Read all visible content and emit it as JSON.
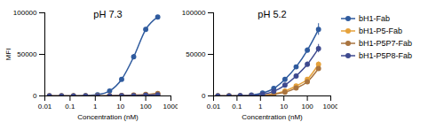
{
  "chart_data": [
    {
      "type": "line",
      "title": "pH 7.3",
      "x_label": "Concentration (nM)",
      "y_label": "MFI",
      "log": "x",
      "xlim": [
        0.01,
        1000
      ],
      "xticks": [
        0.01,
        0.1,
        1,
        10,
        100,
        1000
      ],
      "ylim": [
        0,
        100000
      ],
      "yticks": [
        0,
        50000,
        100000
      ],
      "marker": "circle",
      "x": [
        0.0152,
        0.0457,
        0.137,
        0.412,
        1.23,
        3.7,
        11.1,
        33.3,
        100,
        300
      ],
      "series": [
        {
          "name": "bH1-Fab",
          "color": "#2f5b9e",
          "values": [
            0,
            0,
            100,
            400,
            1500,
            6000,
            20000,
            47000,
            80000,
            95000
          ],
          "errors": [
            0,
            0,
            0,
            0,
            200,
            500,
            1000,
            3000,
            2500,
            1000
          ]
        },
        {
          "name": "bH1-P5-Fab",
          "color": "#e6a23c",
          "values": [
            0,
            0,
            0,
            0,
            0,
            100,
            200,
            500,
            1000,
            2000
          ],
          "errors": [
            0,
            0,
            0,
            0,
            0,
            0,
            0,
            0,
            200,
            300
          ]
        },
        {
          "name": "bH1-P5P7-Fab",
          "color": "#a9743f",
          "values": [
            0,
            0,
            0,
            0,
            100,
            200,
            500,
            1000,
            1800,
            3000
          ],
          "errors": [
            0,
            0,
            0,
            0,
            0,
            0,
            0,
            100,
            200,
            300
          ]
        },
        {
          "name": "bH1-P5P8-Fab",
          "color": "#3e4a8f",
          "values": [
            0,
            0,
            0,
            0,
            0,
            100,
            200,
            400,
            800,
            1500
          ],
          "errors": [
            0,
            0,
            0,
            0,
            0,
            0,
            0,
            0,
            100,
            200
          ]
        }
      ]
    },
    {
      "type": "line",
      "title": "pH 5.2",
      "x_label": "Concentration (nM)",
      "log": "x",
      "xlim": [
        0.01,
        1000
      ],
      "xticks": [
        0.01,
        0.1,
        1,
        10,
        100,
        1000
      ],
      "ylim": [
        0,
        100000
      ],
      "yticks": [
        0,
        50000,
        100000
      ],
      "marker": "circle",
      "legend": "right",
      "x": [
        0.0152,
        0.0457,
        0.137,
        0.412,
        1.23,
        3.7,
        11.1,
        33.3,
        100,
        300
      ],
      "series": [
        {
          "name": "bH1-Fab",
          "color": "#2f5b9e",
          "values": [
            0,
            100,
            300,
            1000,
            3500,
            9000,
            20000,
            35000,
            55000,
            80000
          ],
          "errors": [
            0,
            0,
            0,
            100,
            300,
            500,
            1000,
            2000,
            3000,
            7000
          ]
        },
        {
          "name": "bH1-P5-Fab",
          "color": "#e6a23c",
          "values": [
            0,
            0,
            100,
            300,
            900,
            2500,
            6000,
            12000,
            20000,
            38000
          ],
          "errors": [
            0,
            0,
            0,
            0,
            100,
            200,
            500,
            1000,
            1500,
            3000
          ]
        },
        {
          "name": "bH1-P5P7-Fab",
          "color": "#a9743f",
          "values": [
            0,
            0,
            0,
            200,
            600,
            1800,
            4500,
            9500,
            17000,
            33000
          ],
          "errors": [
            0,
            0,
            0,
            0,
            100,
            200,
            400,
            800,
            1500,
            3000
          ]
        },
        {
          "name": "bH1-P5P8-Fab",
          "color": "#3e4a8f",
          "values": [
            0,
            0,
            200,
            600,
            2000,
            5500,
            13000,
            24000,
            38000,
            57000
          ],
          "errors": [
            0,
            0,
            0,
            100,
            200,
            400,
            800,
            1500,
            3000,
            5000
          ]
        }
      ]
    }
  ]
}
